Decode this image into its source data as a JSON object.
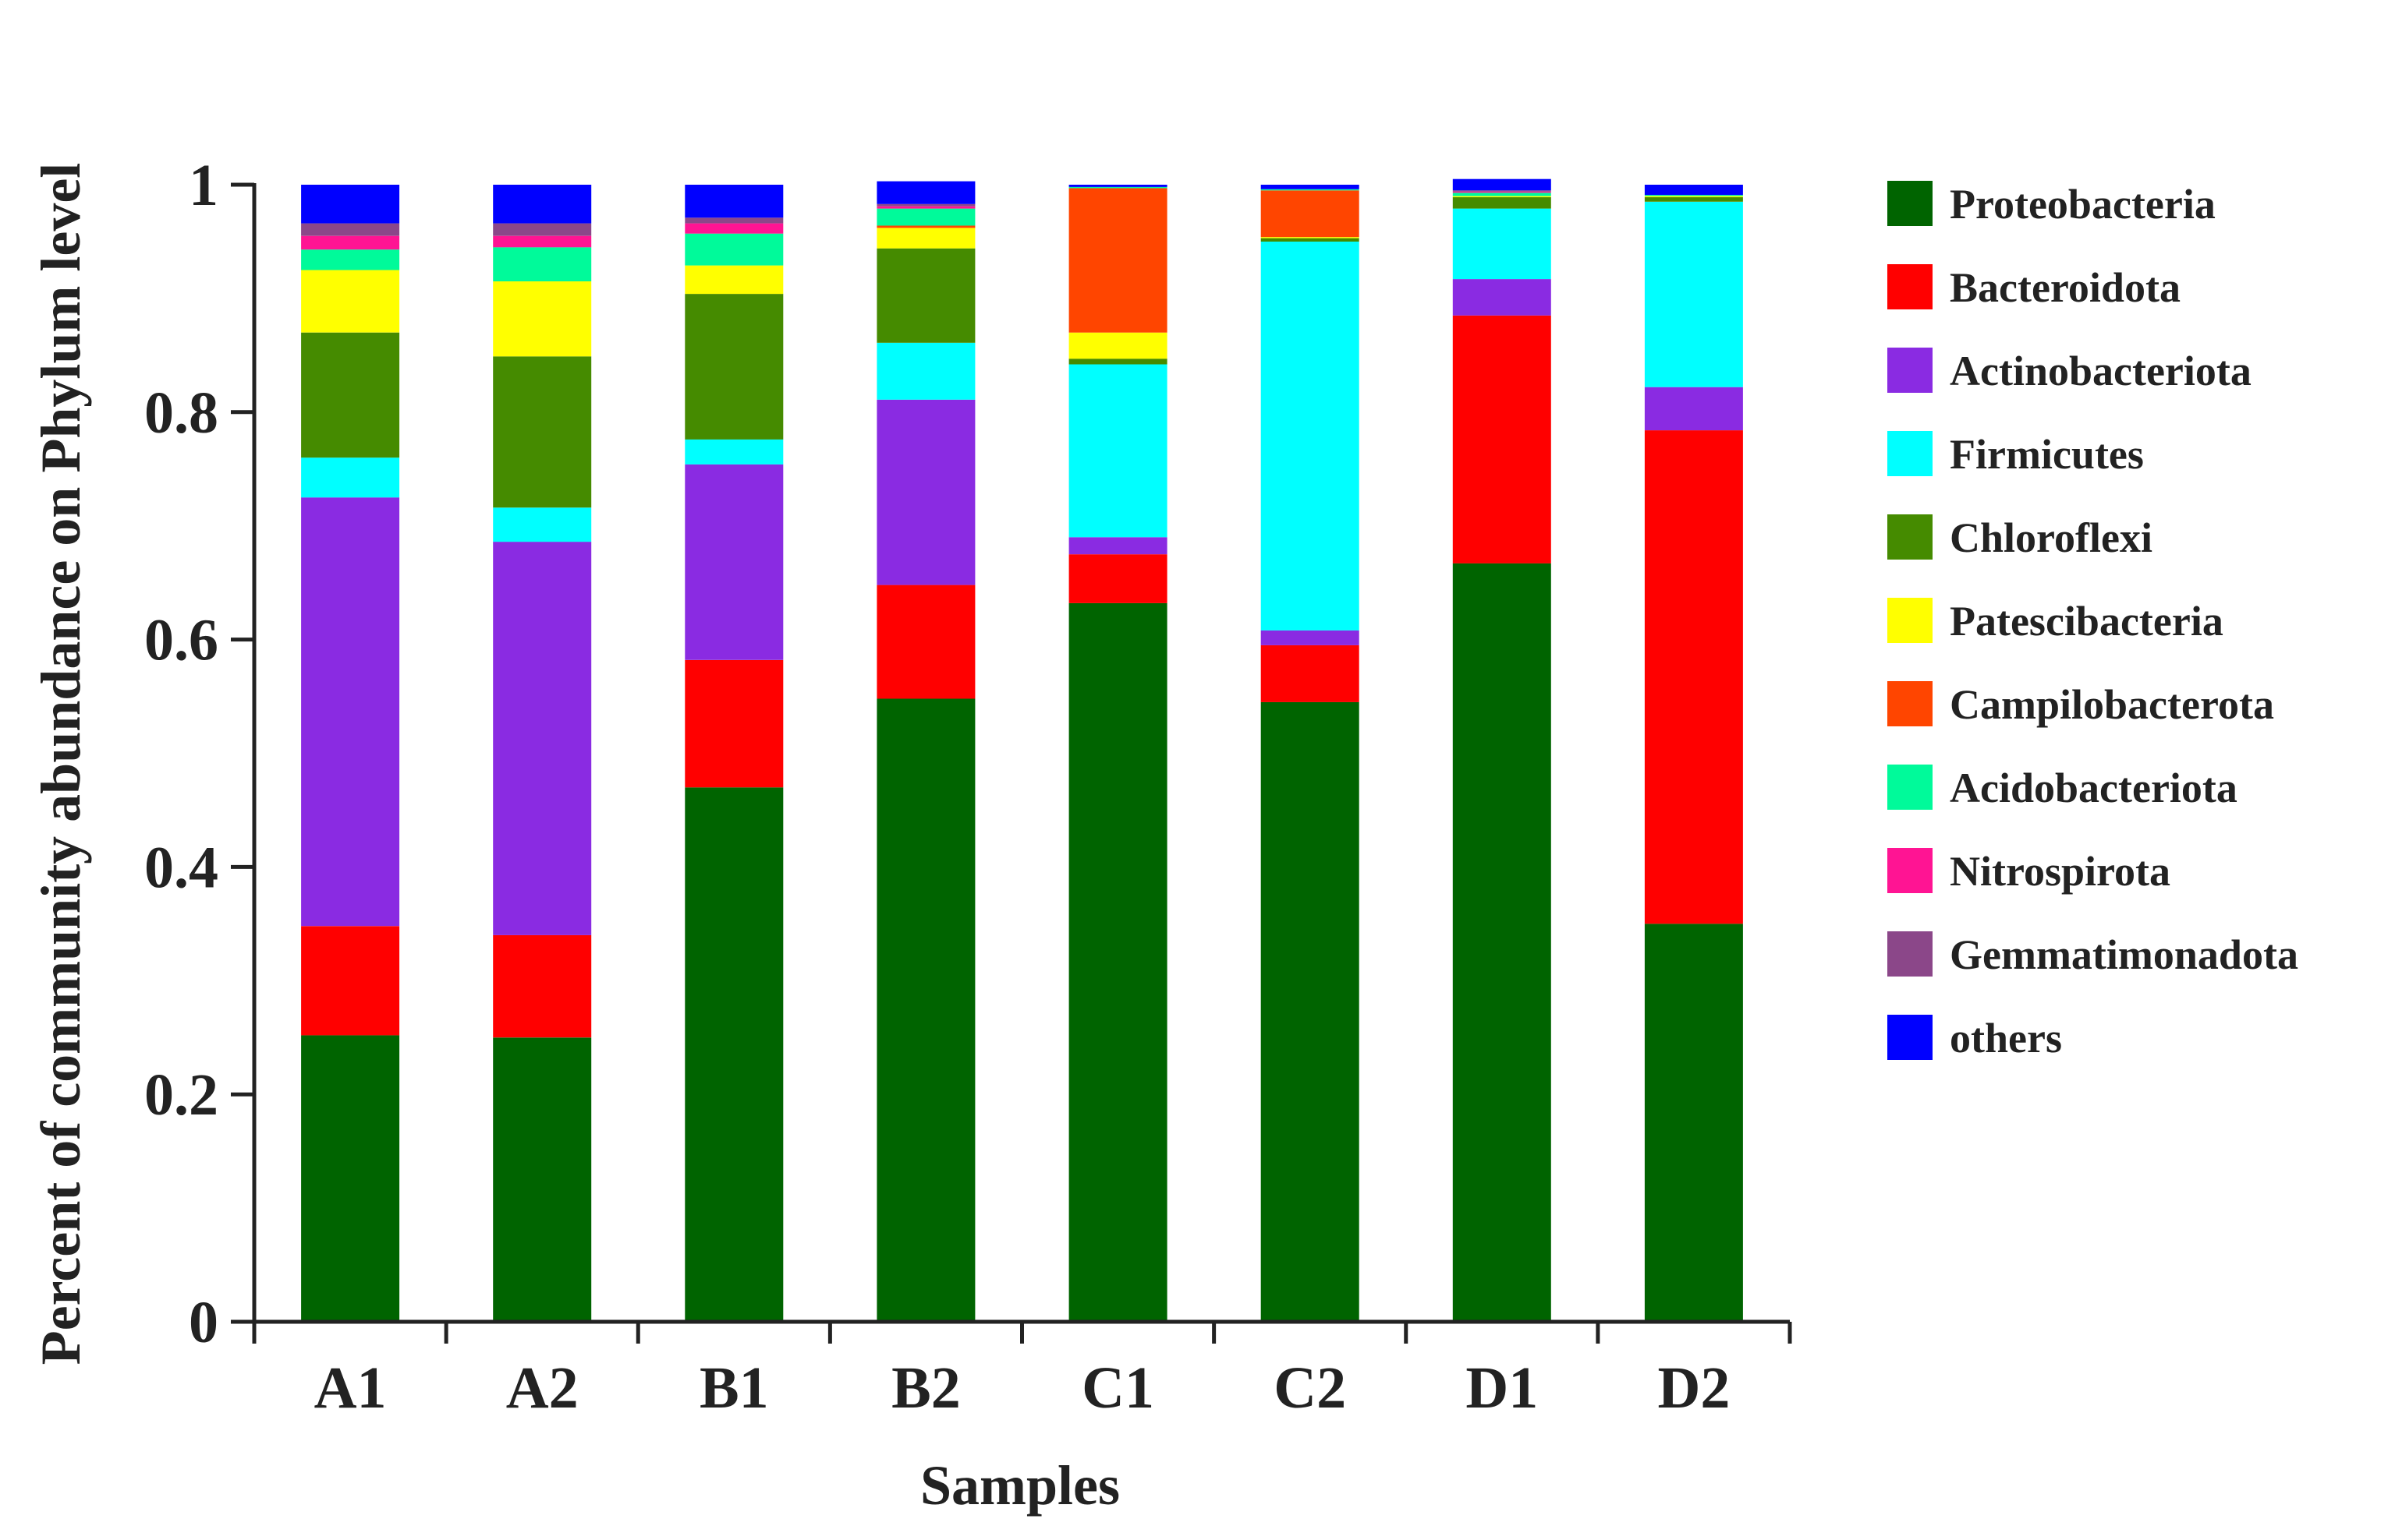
{
  "chart_data": {
    "type": "bar",
    "stacked": true,
    "title": "",
    "xlabel": "Samples",
    "ylabel": "Percent of community abundance on Phylum level",
    "ylim": [
      0,
      1
    ],
    "yticks": [
      0,
      0.2,
      0.4,
      0.6,
      0.8,
      1
    ],
    "ytick_labels": [
      "0",
      "0.2",
      "0.4",
      "0.6",
      "0.8",
      "1"
    ],
    "legend_position": "right",
    "categories": [
      "A1",
      "A2",
      "B1",
      "B2",
      "C1",
      "C2",
      "D1",
      "D2"
    ],
    "series": [
      {
        "name": "Proteobacteria",
        "color": "#006400",
        "values": [
          0.252,
          0.25,
          0.47,
          0.548,
          0.632,
          0.545,
          0.667,
          0.35
        ]
      },
      {
        "name": "Bacteroidota",
        "color": "#FF0000",
        "values": [
          0.096,
          0.09,
          0.112,
          0.1,
          0.043,
          0.05,
          0.218,
          0.434
        ]
      },
      {
        "name": "Actinobacteriota",
        "color": "#8A2BE2",
        "values": [
          0.377,
          0.346,
          0.172,
          0.163,
          0.015,
          0.013,
          0.032,
          0.038
        ]
      },
      {
        "name": "Firmicutes",
        "color": "#00FFFF",
        "values": [
          0.035,
          0.03,
          0.022,
          0.05,
          0.152,
          0.342,
          0.062,
          0.163
        ]
      },
      {
        "name": "Chloroflexi",
        "color": "#458B00",
        "values": [
          0.11,
          0.133,
          0.128,
          0.083,
          0.005,
          0.003,
          0.01,
          0.004
        ]
      },
      {
        "name": "Patescibacteria",
        "color": "#FFFF00",
        "values": [
          0.055,
          0.066,
          0.025,
          0.018,
          0.023,
          0.001,
          0.001,
          0.001
        ]
      },
      {
        "name": "Campilobacterota",
        "color": "#FF4500",
        "values": [
          0.0,
          0.0,
          0.0,
          0.002,
          0.127,
          0.041,
          0.0,
          0.0
        ]
      },
      {
        "name": "Acidobacteriota",
        "color": "#00FA9A",
        "values": [
          0.018,
          0.03,
          0.028,
          0.015,
          0.001,
          0.001,
          0.003,
          0.001
        ]
      },
      {
        "name": "Nitrospirota",
        "color": "#FF1493",
        "values": [
          0.012,
          0.01,
          0.009,
          0.002,
          0.0,
          0.0,
          0.001,
          0.0
        ]
      },
      {
        "name": "Gemmatimonadota",
        "color": "#8B4789",
        "values": [
          0.011,
          0.011,
          0.005,
          0.002,
          0.0,
          0.0,
          0.001,
          0.0
        ]
      },
      {
        "name": "others",
        "color": "#0000FF",
        "values": [
          0.034,
          0.034,
          0.029,
          0.02,
          0.002,
          0.004,
          0.01,
          0.009
        ]
      }
    ]
  }
}
